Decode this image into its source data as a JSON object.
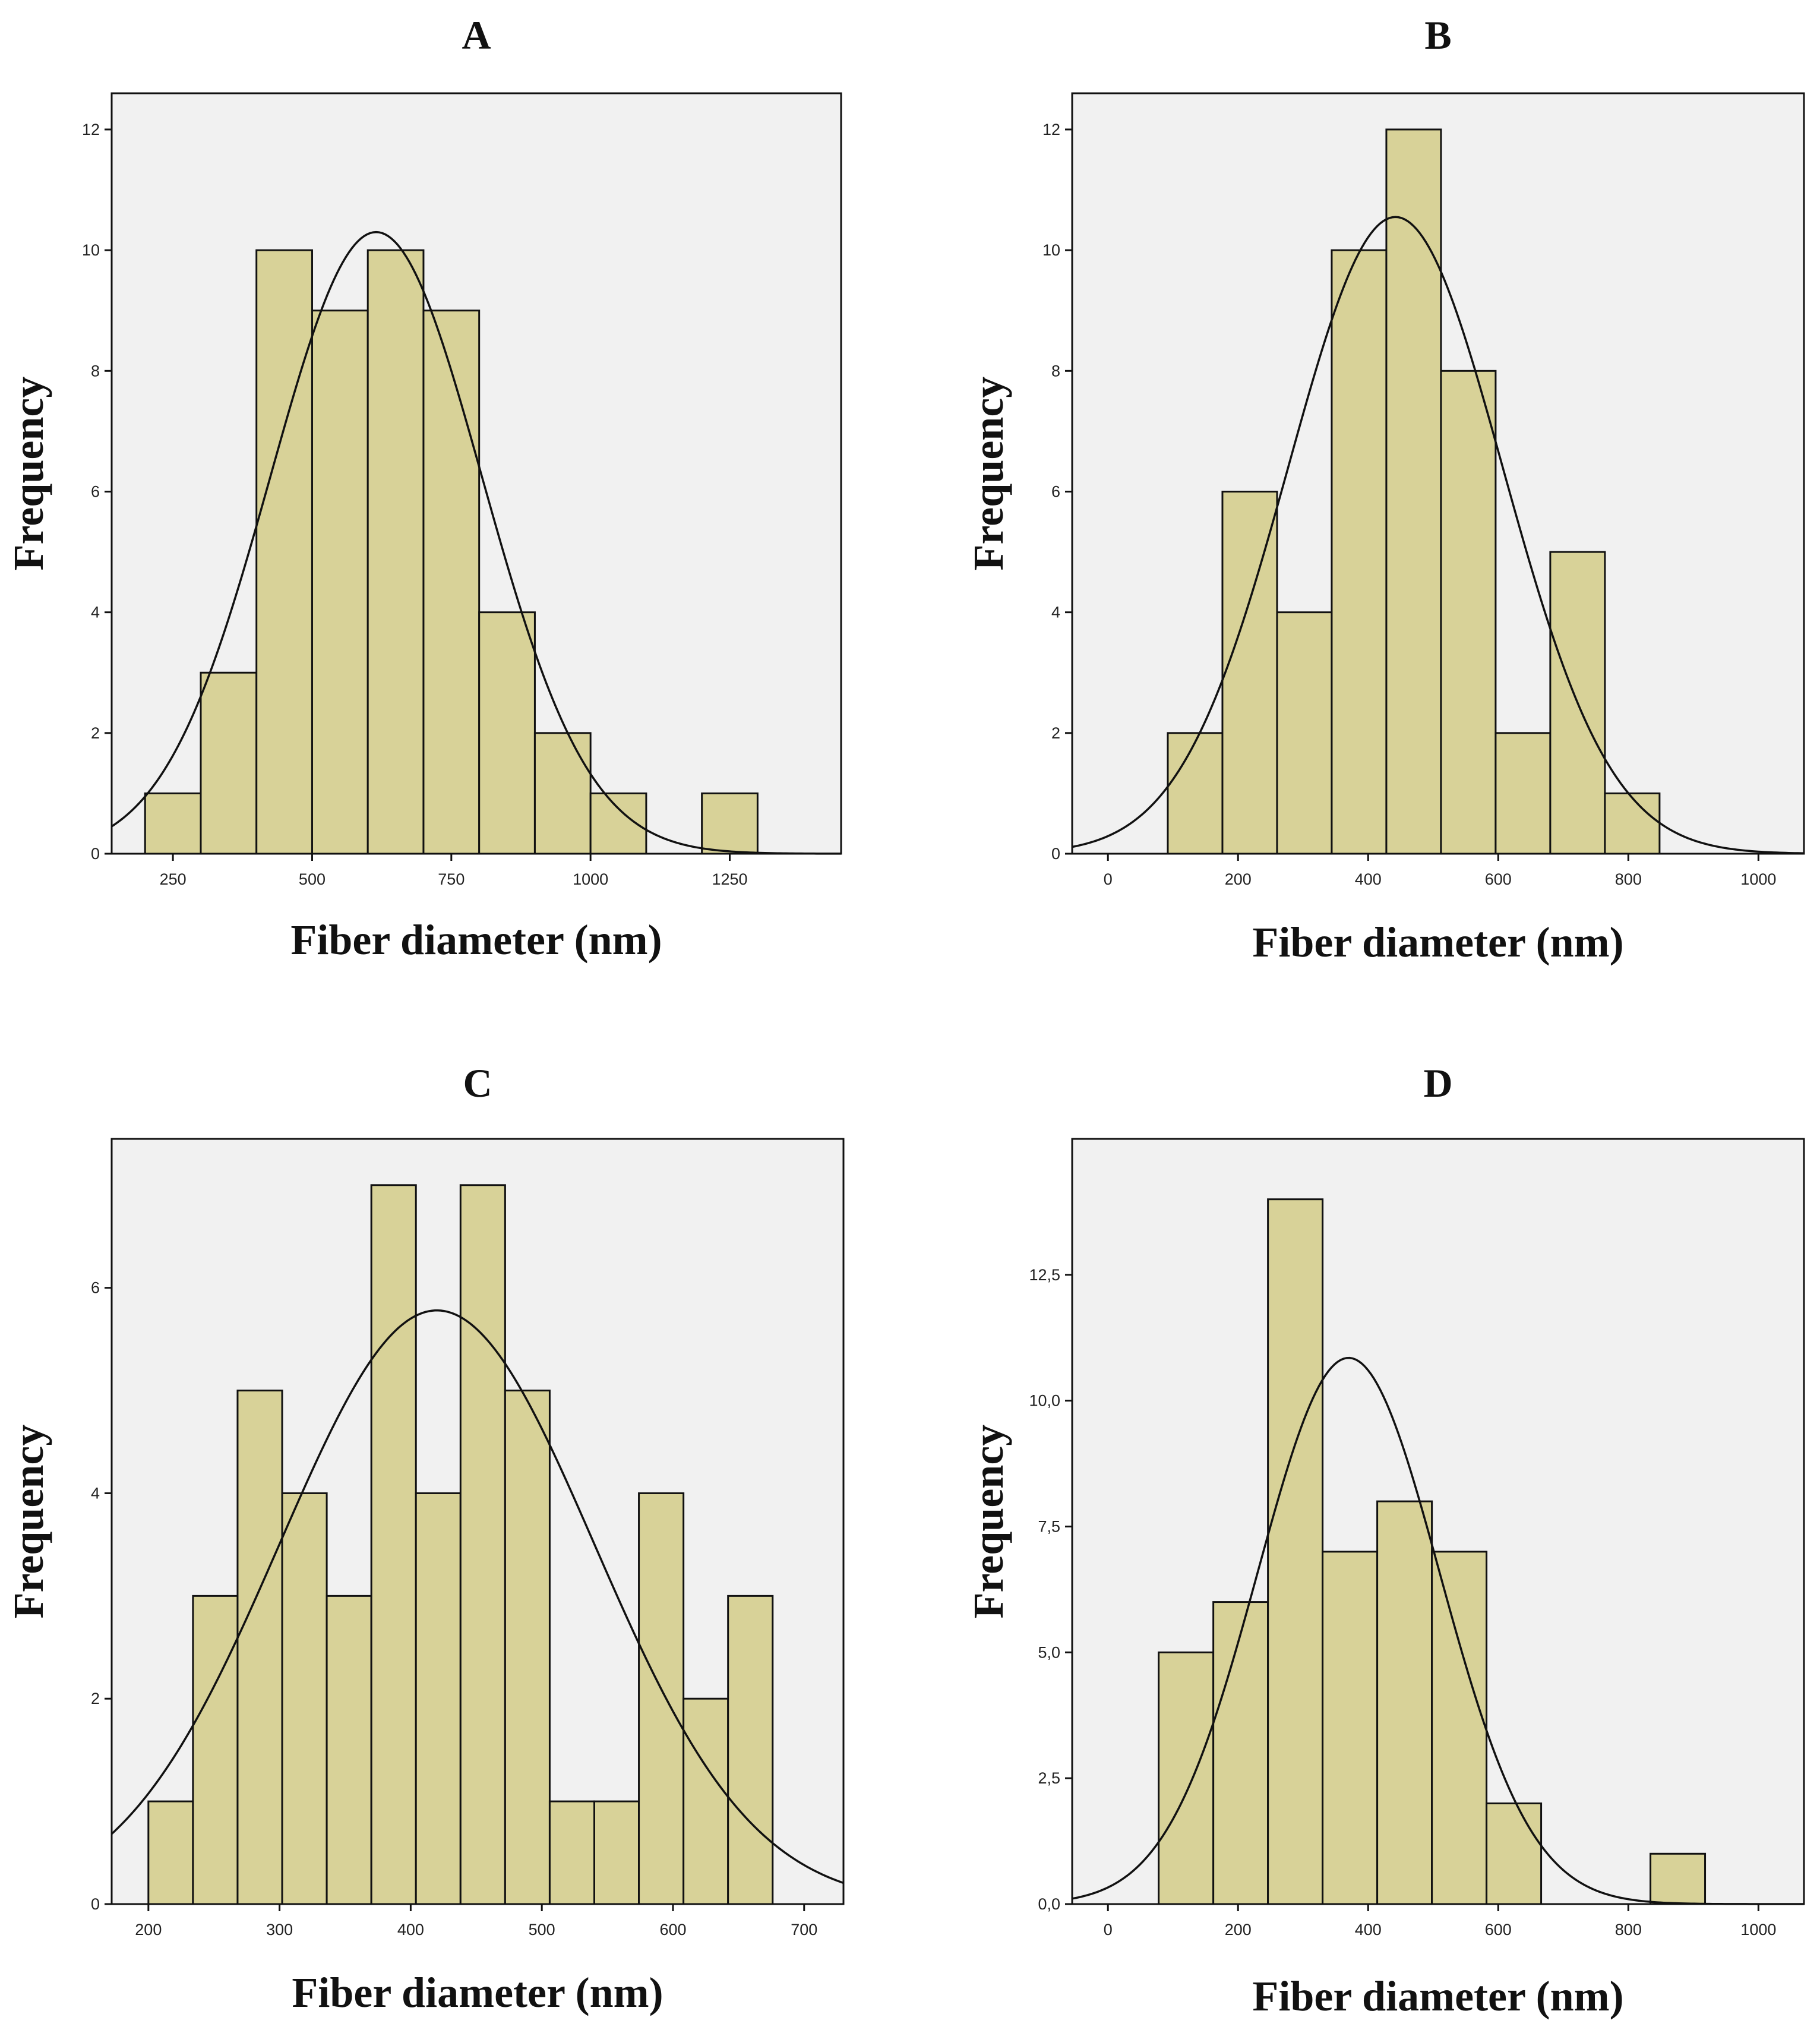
{
  "colors": {
    "bar_fill": "#d8d298",
    "plot_background": "#f1f1f1",
    "line": "#111111"
  },
  "chart_data": [
    {
      "id": "A",
      "title": "A",
      "type": "bar",
      "subtype": "histogram with normal curve",
      "xlabel": "Fiber diameter (nm)",
      "ylabel": "Frequency",
      "xlim": [
        140,
        1450
      ],
      "ylim": [
        0,
        12.6
      ],
      "xticks": [
        250,
        500,
        750,
        1000,
        1250
      ],
      "xtick_labels": [
        "250",
        "500",
        "750",
        "1000",
        "1250"
      ],
      "yticks": [
        0,
        2,
        4,
        6,
        8,
        10,
        12
      ],
      "ytick_labels": [
        "0",
        "2",
        "4",
        "6",
        "8",
        "10",
        "12"
      ],
      "bins": [
        [
          200,
          300
        ],
        [
          300,
          400
        ],
        [
          400,
          500
        ],
        [
          500,
          600
        ],
        [
          600,
          700
        ],
        [
          700,
          800
        ],
        [
          800,
          900
        ],
        [
          900,
          1000
        ],
        [
          1000,
          1100
        ],
        [
          1100,
          1200
        ],
        [
          1200,
          1300
        ]
      ],
      "values": [
        1,
        3,
        10,
        9,
        10,
        9,
        4,
        2,
        1,
        0,
        1
      ],
      "normal_curve": {
        "mean": 615,
        "std": 190,
        "peak": 10.3
      }
    },
    {
      "id": "B",
      "title": "B",
      "type": "bar",
      "subtype": "histogram with normal curve",
      "xlabel": "Fiber diameter (nm)",
      "ylabel": "Frequency",
      "xlim": [
        -55,
        1070
      ],
      "ylim": [
        0,
        12.6
      ],
      "xticks": [
        0,
        200,
        400,
        600,
        800,
        1000
      ],
      "xtick_labels": [
        "0",
        "200",
        "400",
        "600",
        "800",
        "1000"
      ],
      "yticks": [
        0,
        2,
        4,
        6,
        8,
        10,
        12
      ],
      "ytick_labels": [
        "0",
        "2",
        "4",
        "6",
        "8",
        "10",
        "12"
      ],
      "bins": [
        [
          92,
          176
        ],
        [
          176,
          260
        ],
        [
          260,
          344
        ],
        [
          344,
          428
        ],
        [
          428,
          512
        ],
        [
          512,
          596
        ],
        [
          596,
          680
        ],
        [
          680,
          764
        ],
        [
          764,
          848
        ]
      ],
      "values": [
        2,
        6,
        4,
        10,
        12,
        8,
        2,
        5,
        1
      ],
      "normal_curve": {
        "mean": 442,
        "std": 165,
        "peak": 10.55
      }
    },
    {
      "id": "C",
      "title": "C",
      "type": "bar",
      "subtype": "histogram with normal curve",
      "xlabel": "Fiber diameter (nm)",
      "ylabel": "Frequency",
      "xlim": [
        172,
        730
      ],
      "ylim": [
        0,
        7.45
      ],
      "xticks": [
        200,
        300,
        400,
        500,
        600,
        700
      ],
      "xtick_labels": [
        "200",
        "300",
        "400",
        "500",
        "600",
        "700"
      ],
      "yticks": [
        0,
        2,
        4,
        6
      ],
      "ytick_labels": [
        "0",
        "2",
        "4",
        "6"
      ],
      "bins": [
        [
          200,
          234
        ],
        [
          234,
          268
        ],
        [
          268,
          302
        ],
        [
          302,
          336
        ],
        [
          336,
          370
        ],
        [
          370,
          404
        ],
        [
          404,
          438
        ],
        [
          438,
          472
        ],
        [
          472,
          506
        ],
        [
          506,
          540
        ],
        [
          540,
          574
        ],
        [
          574,
          608
        ],
        [
          608,
          642
        ],
        [
          642,
          676
        ]
      ],
      "values": [
        1,
        3,
        5,
        4,
        3,
        7,
        4,
        7,
        5,
        1,
        1,
        4,
        2,
        3
      ],
      "normal_curve": {
        "mean": 420,
        "std": 120,
        "peak": 5.78
      }
    },
    {
      "id": "D",
      "title": "D",
      "type": "bar",
      "subtype": "histogram with normal curve",
      "xlabel": "Fiber diameter (nm)",
      "ylabel": "Frequency",
      "xlim": [
        -55,
        1070
      ],
      "ylim": [
        0,
        15.2
      ],
      "xticks": [
        0,
        200,
        400,
        600,
        800,
        1000
      ],
      "xtick_labels": [
        "0",
        "200",
        "400",
        "600",
        "800",
        "1000"
      ],
      "yticks": [
        0,
        2.5,
        5,
        7.5,
        10,
        12.5
      ],
      "ytick_labels": [
        "0,0",
        "2,5",
        "5,0",
        "7,5",
        "10,0",
        "12,5"
      ],
      "bins": [
        [
          78,
          162
        ],
        [
          162,
          246
        ],
        [
          246,
          330
        ],
        [
          330,
          414
        ],
        [
          414,
          498
        ],
        [
          498,
          582
        ],
        [
          582,
          666
        ],
        [
          666,
          750
        ],
        [
          750,
          834
        ],
        [
          834,
          918
        ]
      ],
      "values": [
        5,
        6,
        14,
        7,
        8,
        7,
        2,
        0,
        0,
        1
      ],
      "normal_curve": {
        "mean": 370,
        "std": 140,
        "peak": 10.85
      }
    }
  ]
}
